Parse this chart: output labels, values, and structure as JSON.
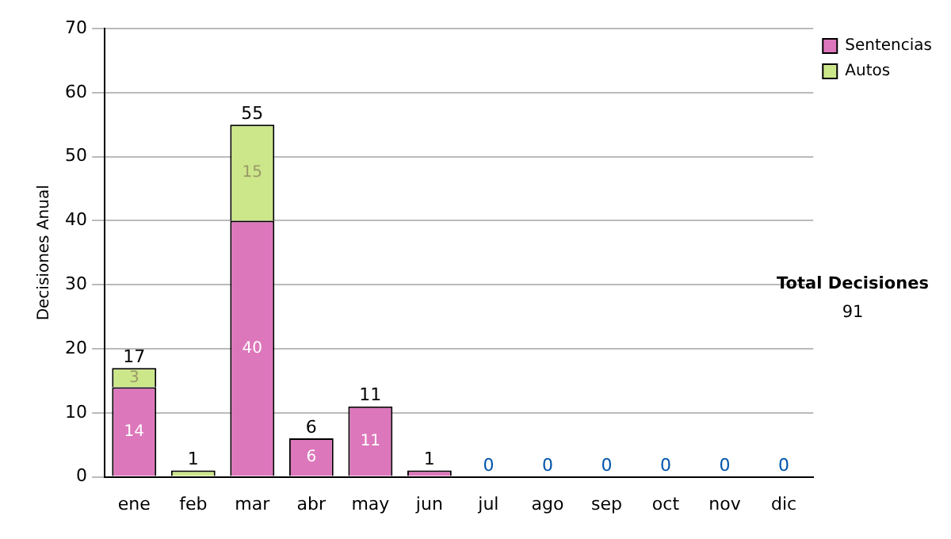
{
  "chart_data": {
    "type": "bar",
    "stacked": true,
    "ylabel": "Decisiones Anual",
    "categories": [
      "ene",
      "feb",
      "mar",
      "abr",
      "may",
      "jun",
      "jul",
      "ago",
      "sep",
      "oct",
      "nov",
      "dic"
    ],
    "series": [
      {
        "name": "Sentencias",
        "color": "#dd77bb",
        "values": [
          14,
          0,
          40,
          6,
          11,
          1,
          0,
          0,
          0,
          0,
          0,
          0
        ],
        "value_labels": [
          "14",
          null,
          "40",
          "6",
          "11",
          null,
          null,
          null,
          null,
          null,
          null,
          null
        ]
      },
      {
        "name": "Autos",
        "color": "#cce68a",
        "values": [
          3,
          1,
          15,
          0,
          0,
          0,
          0,
          0,
          0,
          0,
          0,
          0
        ],
        "value_labels": [
          "3",
          null,
          "15",
          null,
          null,
          null,
          null,
          null,
          null,
          null,
          null,
          null
        ]
      }
    ],
    "totals": [
      "17",
      "1",
      "55",
      "6",
      "11",
      "1",
      "0",
      "0",
      "0",
      "0",
      "0",
      "0"
    ],
    "ylim": [
      0,
      70
    ],
    "yticks": [
      0,
      10,
      20,
      30,
      40,
      50,
      60,
      70
    ],
    "grid": "y",
    "legend": "right",
    "annotations": [
      "Total Decisiones",
      "91"
    ]
  }
}
